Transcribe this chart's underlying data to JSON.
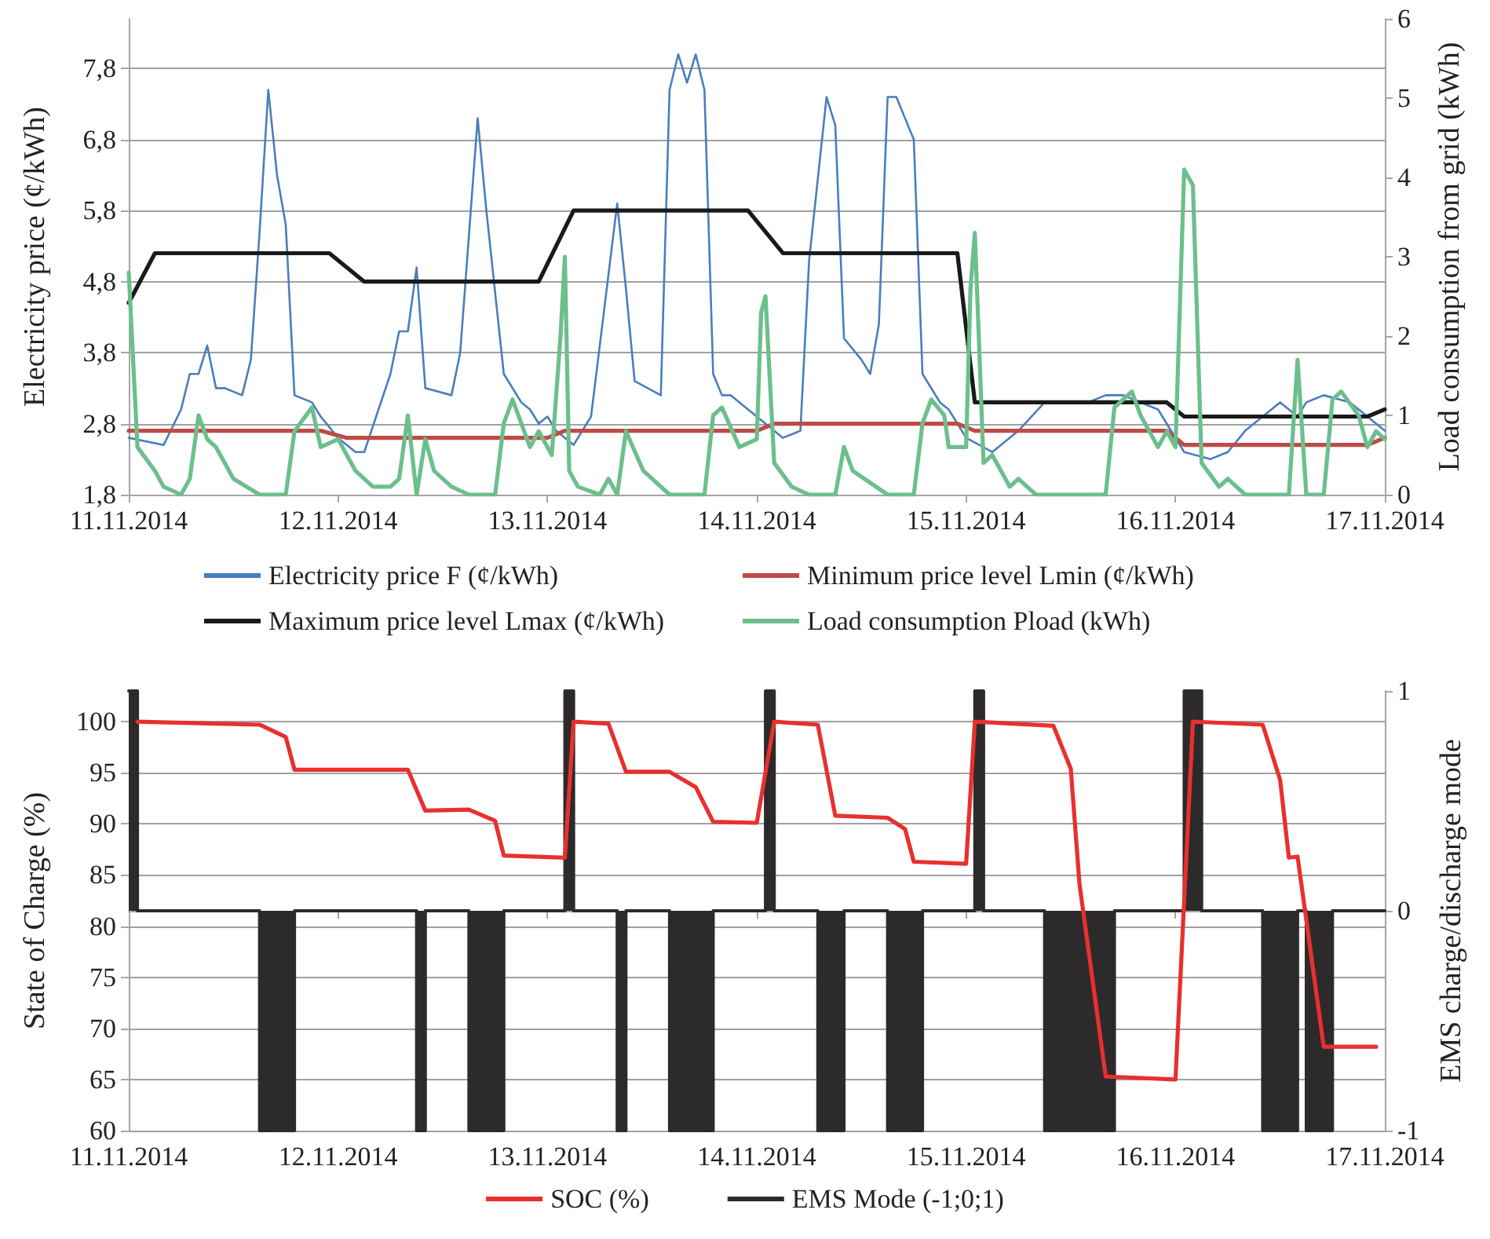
{
  "chart_data": [
    {
      "type": "line",
      "ylabel": "Electricity price (¢/kWh)",
      "y2label": "Load consumption from grid (kWh)",
      "xlim": [
        "2014-11-11",
        "2014-11-17"
      ],
      "xticks": [
        {
          "value": "2014-11-11",
          "label": "11.11.2014"
        },
        {
          "value": "2014-11-12",
          "label": "12.11.2014"
        },
        {
          "value": "2014-11-13",
          "label": "13.11.2014"
        },
        {
          "value": "2014-11-14",
          "label": "14.11.2014"
        },
        {
          "value": "2014-11-15",
          "label": "15.11.2014"
        },
        {
          "value": "2014-11-16",
          "label": "16.11.2014"
        },
        {
          "value": "2014-11-17",
          "label": "17.11.2014"
        }
      ],
      "ylim": [
        1.8,
        8.5
      ],
      "yticks": [
        {
          "value": 1.8,
          "label": "1,8"
        },
        {
          "value": 2.8,
          "label": "2,8"
        },
        {
          "value": 3.8,
          "label": "3,8"
        },
        {
          "value": 4.8,
          "label": "4,8"
        },
        {
          "value": 5.8,
          "label": "5,8"
        },
        {
          "value": 6.8,
          "label": "6,8"
        },
        {
          "value": 7.8,
          "label": "7,8"
        }
      ],
      "y2lim": [
        0,
        6
      ],
      "y2ticks": [
        0,
        1,
        2,
        3,
        4,
        5,
        6
      ],
      "grid": "y",
      "legend": "bottom",
      "series": [
        {
          "name": "Electricity price F (¢/kWh)",
          "color": "#4a7ebb",
          "x": [
            "2014-11-11T00:00",
            "2014-11-11T04:00",
            "2014-11-11T06:00",
            "2014-11-11T07:00",
            "2014-11-11T08:00",
            "2014-11-11T09:00",
            "2014-11-11T10:00",
            "2014-11-11T11:00",
            "2014-11-11T13:00",
            "2014-11-11T14:00",
            "2014-11-11T15:00",
            "2014-11-11T16:00",
            "2014-11-11T17:00",
            "2014-11-11T18:00",
            "2014-11-11T19:00",
            "2014-11-11T21:00",
            "2014-11-11T22:00",
            "2014-11-12T00:00",
            "2014-11-12T02:00",
            "2014-11-12T03:00",
            "2014-11-12T06:00",
            "2014-11-12T07:00",
            "2014-11-12T08:00",
            "2014-11-12T09:00",
            "2014-11-12T10:00",
            "2014-11-12T13:00",
            "2014-11-12T14:00",
            "2014-11-12T16:00",
            "2014-11-12T17:00",
            "2014-11-12T19:00",
            "2014-11-12T21:00",
            "2014-11-12T22:00",
            "2014-11-12T23:00",
            "2014-11-13T00:00",
            "2014-11-13T01:00",
            "2014-11-13T03:00",
            "2014-11-13T05:00",
            "2014-11-13T07:00",
            "2014-11-13T08:00",
            "2014-11-13T09:00",
            "2014-11-13T10:00",
            "2014-11-13T13:00",
            "2014-11-13T14:00",
            "2014-11-13T15:00",
            "2014-11-13T16:00",
            "2014-11-13T17:00",
            "2014-11-13T18:00",
            "2014-11-13T19:00",
            "2014-11-13T20:00",
            "2014-11-13T21:00",
            "2014-11-13T23:00",
            "2014-11-14T00:00",
            "2014-11-14T03:00",
            "2014-11-14T05:00",
            "2014-11-14T06:00",
            "2014-11-14T08:00",
            "2014-11-14T09:00",
            "2014-11-14T10:00",
            "2014-11-14T12:00",
            "2014-11-14T13:00",
            "2014-11-14T14:00",
            "2014-11-14T15:00",
            "2014-11-14T16:00",
            "2014-11-14T17:00",
            "2014-11-14T18:00",
            "2014-11-14T19:00",
            "2014-11-14T21:00",
            "2014-11-14T22:00",
            "2014-11-15T00:00",
            "2014-11-15T03:00",
            "2014-11-15T06:00",
            "2014-11-15T09:00",
            "2014-11-15T11:00",
            "2014-11-15T14:00",
            "2014-11-15T16:00",
            "2014-11-15T18:00",
            "2014-11-15T22:00",
            "2014-11-16T01:00",
            "2014-11-16T04:00",
            "2014-11-16T06:00",
            "2014-11-16T08:00",
            "2014-11-16T10:00",
            "2014-11-16T12:00",
            "2014-11-16T14:00",
            "2014-11-16T15:00",
            "2014-11-16T17:00",
            "2014-11-16T20:00",
            "2014-11-16T22:00",
            "2014-11-17T00:00"
          ],
          "values": [
            2.6,
            2.5,
            3.0,
            3.5,
            3.5,
            3.9,
            3.3,
            3.3,
            3.2,
            3.7,
            5.5,
            7.5,
            6.3,
            5.6,
            3.2,
            3.1,
            2.9,
            2.6,
            2.4,
            2.4,
            3.5,
            4.1,
            4.1,
            5.0,
            3.3,
            3.2,
            3.8,
            7.1,
            5.8,
            3.5,
            3.1,
            3.0,
            2.8,
            2.9,
            2.7,
            2.5,
            2.9,
            4.9,
            5.9,
            4.7,
            3.4,
            3.2,
            7.5,
            8.0,
            7.6,
            8.0,
            7.5,
            3.5,
            3.2,
            3.2,
            3.0,
            2.9,
            2.6,
            2.7,
            5.1,
            7.4,
            7.0,
            4.0,
            3.7,
            3.5,
            4.2,
            7.4,
            7.4,
            7.1,
            6.8,
            3.5,
            3.1,
            3.0,
            2.6,
            2.4,
            2.7,
            3.1,
            3.1,
            3.1,
            3.2,
            3.2,
            3.0,
            2.4,
            2.3,
            2.4,
            2.7,
            2.9,
            3.1,
            2.9,
            3.1,
            3.2,
            3.1,
            2.9,
            2.7
          ]
        },
        {
          "name": "Minimum price level Lmin (¢/kWh)",
          "color": "#be4b48",
          "x": [
            "2014-11-11T00:00",
            "2014-11-11T01:00",
            "2014-11-11T22:00",
            "2014-11-12T01:00",
            "2014-11-13T00:00",
            "2014-11-13T02:00",
            "2014-11-14T00:00",
            "2014-11-14T02:00",
            "2014-11-14T23:00",
            "2014-11-15T01:00",
            "2014-11-15T23:00",
            "2014-11-16T01:00",
            "2014-11-16T22:00",
            "2014-11-17T00:00"
          ],
          "values": [
            2.7,
            2.7,
            2.7,
            2.6,
            2.6,
            2.7,
            2.7,
            2.8,
            2.8,
            2.7,
            2.7,
            2.5,
            2.5,
            2.6
          ]
        },
        {
          "name": "Maximum price level Lmax (¢/kWh)",
          "color": "#1a1a1a",
          "x": [
            "2014-11-11T00:00",
            "2014-11-11T03:00",
            "2014-11-11T23:00",
            "2014-11-12T03:00",
            "2014-11-12T23:00",
            "2014-11-13T03:00",
            "2014-11-13T23:00",
            "2014-11-14T03:00",
            "2014-11-14T23:00",
            "2014-11-15T01:00",
            "2014-11-15T23:00",
            "2014-11-16T01:00",
            "2014-11-16T22:00",
            "2014-11-17T00:00"
          ],
          "values": [
            4.5,
            5.2,
            5.2,
            4.8,
            4.8,
            5.8,
            5.8,
            5.2,
            5.2,
            3.1,
            3.1,
            2.9,
            2.9,
            3.0
          ]
        },
        {
          "name": "Load consumption Pload (kWh)",
          "color": "#6cbf8c",
          "axis": "y2",
          "x": [
            "2014-11-11T00:00",
            "2014-11-11T01:00",
            "2014-11-11T03:00",
            "2014-11-11T04:00",
            "2014-11-11T06:00",
            "2014-11-11T07:00",
            "2014-11-11T08:00",
            "2014-11-11T09:00",
            "2014-11-11T10:00",
            "2014-11-11T12:00",
            "2014-11-11T15:00",
            "2014-11-11T18:00",
            "2014-11-11T19:00",
            "2014-11-11T21:00",
            "2014-11-11T22:00",
            "2014-11-12T00:00",
            "2014-11-12T02:00",
            "2014-11-12T04:00",
            "2014-11-12T06:00",
            "2014-11-12T07:00",
            "2014-11-12T08:00",
            "2014-11-12T09:00",
            "2014-11-12T10:00",
            "2014-11-12T11:00",
            "2014-11-12T13:00",
            "2014-11-12T15:00",
            "2014-11-12T18:00",
            "2014-11-12T19:00",
            "2014-11-12T20:00",
            "2014-11-12T21:00",
            "2014-11-12T22:00",
            "2014-11-12T23:00",
            "2014-11-13T00:30",
            "2014-11-13T01:30",
            "2014-11-13T02:00",
            "2014-11-13T02:30",
            "2014-11-13T03:30",
            "2014-11-13T06:00",
            "2014-11-13T07:00",
            "2014-11-13T08:00",
            "2014-11-13T09:00",
            "2014-11-13T11:00",
            "2014-11-13T14:00",
            "2014-11-13T18:00",
            "2014-11-13T19:00",
            "2014-11-13T20:00",
            "2014-11-13T22:00",
            "2014-11-14T00:00",
            "2014-11-14T00:30",
            "2014-11-14T01:00",
            "2014-11-14T02:00",
            "2014-11-14T04:00",
            "2014-11-14T06:00",
            "2014-11-14T09:00",
            "2014-11-14T10:00",
            "2014-11-14T11:00",
            "2014-11-14T15:00",
            "2014-11-14T18:00",
            "2014-11-14T19:00",
            "2014-11-14T20:00",
            "2014-11-14T21:30",
            "2014-11-14T22:00",
            "2014-11-15T00:00",
            "2014-11-15T00:30",
            "2014-11-15T01:00",
            "2014-11-15T02:00",
            "2014-11-15T03:00",
            "2014-11-15T05:00",
            "2014-11-15T06:00",
            "2014-11-15T08:00",
            "2014-11-15T16:00",
            "2014-11-15T17:00",
            "2014-11-15T19:00",
            "2014-11-15T20:00",
            "2014-11-15T22:00",
            "2014-11-15T23:00",
            "2014-11-16T00:00",
            "2014-11-16T01:00",
            "2014-11-16T02:00",
            "2014-11-16T03:00",
            "2014-11-16T05:00",
            "2014-11-16T06:00",
            "2014-11-16T08:00",
            "2014-11-16T13:00",
            "2014-11-16T14:00",
            "2014-11-16T15:00",
            "2014-11-16T17:00",
            "2014-11-16T18:00",
            "2014-11-16T19:00",
            "2014-11-16T21:00",
            "2014-11-16T22:00",
            "2014-11-16T23:00",
            "2014-11-17T00:00"
          ],
          "values": [
            2.8,
            0.6,
            0.3,
            0.1,
            0,
            0.2,
            1.0,
            0.7,
            0.6,
            0.2,
            0,
            0,
            0.8,
            1.1,
            0.6,
            0.7,
            0.3,
            0.1,
            0.1,
            0.2,
            1.0,
            0,
            0.7,
            0.3,
            0.1,
            0,
            0,
            0.9,
            1.2,
            0.9,
            0.6,
            0.8,
            0.5,
            2.0,
            3.0,
            0.3,
            0.1,
            0,
            0.2,
            0,
            0.8,
            0.3,
            0,
            0,
            1.0,
            1.1,
            0.6,
            0.7,
            2.3,
            2.5,
            0.4,
            0.1,
            0,
            0,
            0.6,
            0.3,
            0,
            0,
            0.9,
            1.2,
            1.0,
            0.6,
            0.6,
            2.6,
            3.3,
            0.4,
            0.5,
            0.1,
            0.2,
            0,
            0,
            1.1,
            1.3,
            1.0,
            0.6,
            0.8,
            0.6,
            4.1,
            3.9,
            0.4,
            0.1,
            0.2,
            0,
            0,
            1.7,
            0,
            0,
            1.2,
            1.3,
            1.0,
            0.6,
            0.8,
            0.7
          ]
        }
      ]
    },
    {
      "type": "line",
      "ylabel": "State of Charge (%)",
      "y2label": "EMS charge/discharge mode",
      "xlim": [
        "2014-11-11",
        "2014-11-17"
      ],
      "xticks": [
        {
          "value": "2014-11-11",
          "label": "11.11.2014"
        },
        {
          "value": "2014-11-12",
          "label": "12.11.2014"
        },
        {
          "value": "2014-11-13",
          "label": "13.11.2014"
        },
        {
          "value": "2014-11-14",
          "label": "14.11.2014"
        },
        {
          "value": "2014-11-15",
          "label": "15.11.2014"
        },
        {
          "value": "2014-11-16",
          "label": "16.11.2014"
        },
        {
          "value": "2014-11-17",
          "label": "17.11.2014"
        }
      ],
      "ylim": [
        60,
        103
      ],
      "yticks": [
        60,
        65,
        70,
        75,
        80,
        85,
        90,
        95,
        100
      ],
      "y2lim": [
        -1,
        1
      ],
      "y2ticks": [
        -1,
        0,
        1
      ],
      "grid": "y",
      "legend": "bottom",
      "series": [
        {
          "name": "SOC (%)",
          "color": "#e8302e",
          "x": [
            "2014-11-11T01:00",
            "2014-11-11T15:00",
            "2014-11-11T18:00",
            "2014-11-11T19:00",
            "2014-11-12T08:00",
            "2014-11-12T10:00",
            "2014-11-12T15:00",
            "2014-11-12T18:00",
            "2014-11-12T19:00",
            "2014-11-13T02:00",
            "2014-11-13T03:00",
            "2014-11-13T07:00",
            "2014-11-13T09:00",
            "2014-11-13T14:00",
            "2014-11-13T17:00",
            "2014-11-13T19:00",
            "2014-11-14T00:00",
            "2014-11-14T02:00",
            "2014-11-14T07:00",
            "2014-11-14T09:00",
            "2014-11-14T15:00",
            "2014-11-14T17:00",
            "2014-11-14T18:00",
            "2014-11-15T00:00",
            "2014-11-15T01:00",
            "2014-11-15T10:00",
            "2014-11-15T12:00",
            "2014-11-15T13:00",
            "2014-11-15T16:00",
            "2014-11-16T00:00",
            "2014-11-16T02:00",
            "2014-11-16T10:00",
            "2014-11-16T12:00",
            "2014-11-16T13:00",
            "2014-11-16T14:00",
            "2014-11-16T17:00",
            "2014-11-16T23:00"
          ],
          "values": [
            100,
            99.7,
            98.5,
            95.3,
            95.3,
            91.3,
            91.4,
            90.3,
            86.9,
            86.7,
            100,
            99.8,
            95.1,
            95.1,
            93.6,
            90.2,
            90.1,
            100,
            99.7,
            90.8,
            90.6,
            89.5,
            86.3,
            86.1,
            100,
            99.6,
            95.4,
            84.1,
            65.3,
            65.0,
            100,
            99.7,
            94.3,
            86.7,
            86.8,
            68.2,
            68.2
          ]
        },
        {
          "name": "EMS Mode (-1;0;1)",
          "type": "area",
          "axis": "y2",
          "color": "#2d2a2b",
          "x": [
            "2014-11-11T00:00",
            "2014-11-11T01:00",
            "2014-11-11T01:00",
            "2014-11-11T15:00",
            "2014-11-11T15:00",
            "2014-11-11T19:00",
            "2014-11-11T19:00",
            "2014-11-12T09:00",
            "2014-11-12T09:00",
            "2014-11-12T10:00",
            "2014-11-12T10:00",
            "2014-11-12T15:00",
            "2014-11-12T15:00",
            "2014-11-12T19:00",
            "2014-11-12T19:00",
            "2014-11-13T02:00",
            "2014-11-13T02:00",
            "2014-11-13T03:00",
            "2014-11-13T03:00",
            "2014-11-13T08:00",
            "2014-11-13T08:00",
            "2014-11-13T09:00",
            "2014-11-13T09:00",
            "2014-11-13T14:00",
            "2014-11-13T14:00",
            "2014-11-13T19:00",
            "2014-11-13T19:00",
            "2014-11-14T01:00",
            "2014-11-14T01:00",
            "2014-11-14T02:00",
            "2014-11-14T02:00",
            "2014-11-14T07:00",
            "2014-11-14T07:00",
            "2014-11-14T10:00",
            "2014-11-14T10:00",
            "2014-11-14T15:00",
            "2014-11-14T15:00",
            "2014-11-14T19:00",
            "2014-11-14T19:00",
            "2014-11-15T01:00",
            "2014-11-15T01:00",
            "2014-11-15T02:00",
            "2014-11-15T02:00",
            "2014-11-15T09:00",
            "2014-11-15T09:00",
            "2014-11-15T17:00",
            "2014-11-15T17:00",
            "2014-11-16T01:00",
            "2014-11-16T01:00",
            "2014-11-16T03:00",
            "2014-11-16T03:00",
            "2014-11-16T10:00",
            "2014-11-16T10:00",
            "2014-11-16T14:00",
            "2014-11-16T14:00",
            "2014-11-16T15:00",
            "2014-11-16T15:00",
            "2014-11-16T18:00",
            "2014-11-16T18:00",
            "2014-11-17T00:00"
          ],
          "values": [
            1,
            1,
            0,
            0,
            -1,
            -1,
            0,
            0,
            -1,
            -1,
            0,
            0,
            -1,
            -1,
            0,
            0,
            1,
            1,
            0,
            0,
            -1,
            -1,
            0,
            0,
            -1,
            -1,
            0,
            0,
            1,
            1,
            0,
            0,
            -1,
            -1,
            0,
            0,
            -1,
            -1,
            0,
            0,
            1,
            1,
            0,
            0,
            -1,
            -1,
            0,
            0,
            1,
            1,
            0,
            0,
            -1,
            -1,
            0,
            0,
            -1,
            -1,
            0,
            0
          ]
        }
      ]
    }
  ]
}
